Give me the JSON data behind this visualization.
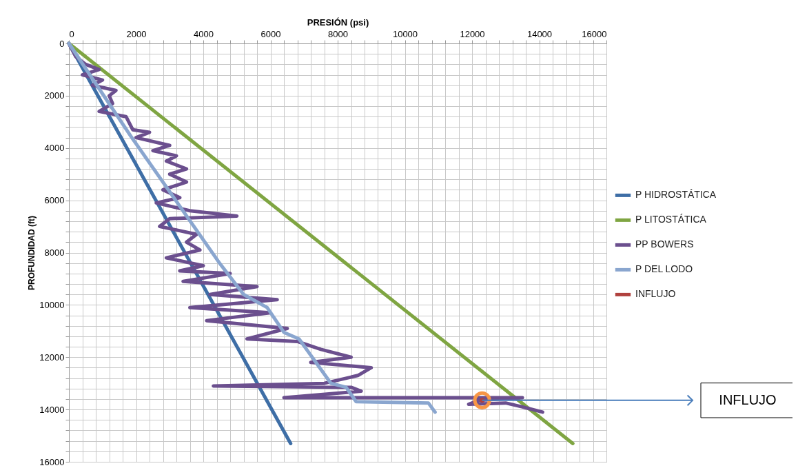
{
  "chart_data": {
    "type": "line",
    "xlabel": "PRESIÓN (psi)",
    "ylabel": "PROFUNDIDAD (ft)",
    "xlim": [
      0,
      16000
    ],
    "ylim": [
      16000,
      0
    ],
    "xticks": [
      0,
      {
        "value": 400,
        "label": null
      },
      {
        "value": 800,
        "label": null
      },
      {
        "value": 1200,
        "label": null
      },
      {
        "value": 1600,
        "label": null
      },
      2000,
      {
        "value": 2400,
        "label": null
      },
      {
        "value": 2800,
        "label": null
      },
      {
        "value": 3200,
        "label": null
      },
      {
        "value": 3600,
        "label": null
      },
      4000,
      {
        "value": 4400,
        "label": null
      },
      {
        "value": 4800,
        "label": null
      },
      {
        "value": 5200,
        "label": null
      },
      {
        "value": 5600,
        "label": null
      },
      6000,
      {
        "value": 6400,
        "label": null
      },
      {
        "value": 6800,
        "label": null
      },
      {
        "value": 7200,
        "label": null
      },
      {
        "value": 7600,
        "label": null
      },
      8000,
      {
        "value": 8400,
        "label": null
      },
      {
        "value": 8800,
        "label": null
      },
      {
        "value": 9200,
        "label": null
      },
      {
        "value": 9600,
        "label": null
      },
      10000,
      {
        "value": 10400,
        "label": null
      },
      {
        "value": 10800,
        "label": null
      },
      {
        "value": 11200,
        "label": null
      },
      {
        "value": 11600,
        "label": null
      },
      12000,
      {
        "value": 12400,
        "label": null
      },
      {
        "value": 12800,
        "label": null
      },
      {
        "value": 13200,
        "label": null
      },
      {
        "value": 13600,
        "label": null
      },
      14000,
      {
        "value": 14400,
        "label": null
      },
      {
        "value": 14800,
        "label": null
      },
      {
        "value": 15200,
        "label": null
      },
      {
        "value": 15600,
        "label": null
      },
      16000
    ],
    "yticks": [
      0,
      {
        "value": 400,
        "label": null
      },
      {
        "value": 800,
        "label": null
      },
      {
        "value": 1200,
        "label": null
      },
      {
        "value": 1600,
        "label": null
      },
      2000,
      {
        "value": 2400,
        "label": null
      },
      {
        "value": 2800,
        "label": null
      },
      {
        "value": 3200,
        "label": null
      },
      {
        "value": 3600,
        "label": null
      },
      4000,
      {
        "value": 4400,
        "label": null
      },
      {
        "value": 4800,
        "label": null
      },
      {
        "value": 5200,
        "label": null
      },
      {
        "value": 5600,
        "label": null
      },
      6000,
      {
        "value": 6400,
        "label": null
      },
      {
        "value": 6800,
        "label": null
      },
      {
        "value": 7200,
        "label": null
      },
      {
        "value": 7600,
        "label": null
      },
      8000,
      {
        "value": 8400,
        "label": null
      },
      {
        "value": 8800,
        "label": null
      },
      {
        "value": 9200,
        "label": null
      },
      {
        "value": 9600,
        "label": null
      },
      10000,
      {
        "value": 10400,
        "label": null
      },
      {
        "value": 10800,
        "label": null
      },
      {
        "value": 11200,
        "label": null
      },
      {
        "value": 11600,
        "label": null
      },
      12000,
      {
        "value": 12400,
        "label": null
      },
      {
        "value": 12800,
        "label": null
      },
      {
        "value": 13200,
        "label": null
      },
      {
        "value": 13600,
        "label": null
      },
      14000,
      {
        "value": 14400,
        "label": null
      },
      {
        "value": 14800,
        "label": null
      },
      {
        "value": 15200,
        "label": null
      },
      {
        "value": 15600,
        "label": null
      },
      16000
    ],
    "grid": true,
    "legend": "right",
    "series": [
      {
        "name": "P HIDROSTÁTICA",
        "color": "#3e6ea6",
        "x": [
          0,
          6600
        ],
        "values": [
          0,
          15300
        ]
      },
      {
        "name": "P LITOSTÁTICA",
        "color": "#7fa542",
        "x": [
          0,
          15000
        ],
        "values": [
          0,
          15300
        ]
      },
      {
        "name": "PP BOWERS",
        "color": "#6b4f8e",
        "x": [
          0,
          200,
          500,
          900,
          400,
          1000,
          700,
          1400,
          1200,
          1300,
          900,
          1700,
          1900,
          2400,
          2000,
          3000,
          2500,
          3200,
          2900,
          3500,
          3000,
          3500,
          2800,
          3300,
          2600,
          3600,
          5000,
          3000,
          2700,
          3800,
          3500,
          3900,
          2900,
          4000,
          3300,
          4800,
          3400,
          5600,
          4200,
          6200,
          3600,
          6000,
          4100,
          6500,
          5300,
          6800,
          7500,
          8400,
          7200,
          9000,
          8600,
          7600,
          4300,
          8400,
          8700,
          6400,
          13500,
          12200,
          11900,
          13000,
          13500,
          14100
        ],
        "values": [
          0,
          500,
          800,
          1000,
          1200,
          1400,
          1600,
          1800,
          2000,
          2300,
          2600,
          2800,
          3300,
          3400,
          3600,
          3900,
          4100,
          4300,
          4500,
          4800,
          5000,
          5300,
          5600,
          5900,
          6100,
          6400,
          6600,
          6700,
          7000,
          7300,
          7600,
          7900,
          8200,
          8500,
          8700,
          8800,
          9100,
          9300,
          9600,
          9800,
          10100,
          10300,
          10600,
          10900,
          11300,
          11400,
          11700,
          12000,
          12200,
          12400,
          12700,
          13000,
          13100,
          13150,
          13300,
          13550,
          13550,
          13650,
          13800,
          13750,
          13900,
          14100
        ]
      },
      {
        "name": "P DEL LODO",
        "color": "#8aa6cf",
        "x": [
          0,
          1850,
          4500,
          5200,
          5900,
          6400,
          6850,
          7800,
          8250,
          8550,
          10700,
          10900
        ],
        "values": [
          0,
          3560,
          8430,
          9600,
          10100,
          11050,
          11300,
          13000,
          13150,
          13700,
          13750,
          14100
        ]
      },
      {
        "name": "INFLUJO",
        "type": "scatter",
        "color": "#b0413e",
        "x": [
          12300
        ],
        "values": [
          13650
        ]
      }
    ],
    "annotations": [
      "INFLUJO"
    ]
  }
}
